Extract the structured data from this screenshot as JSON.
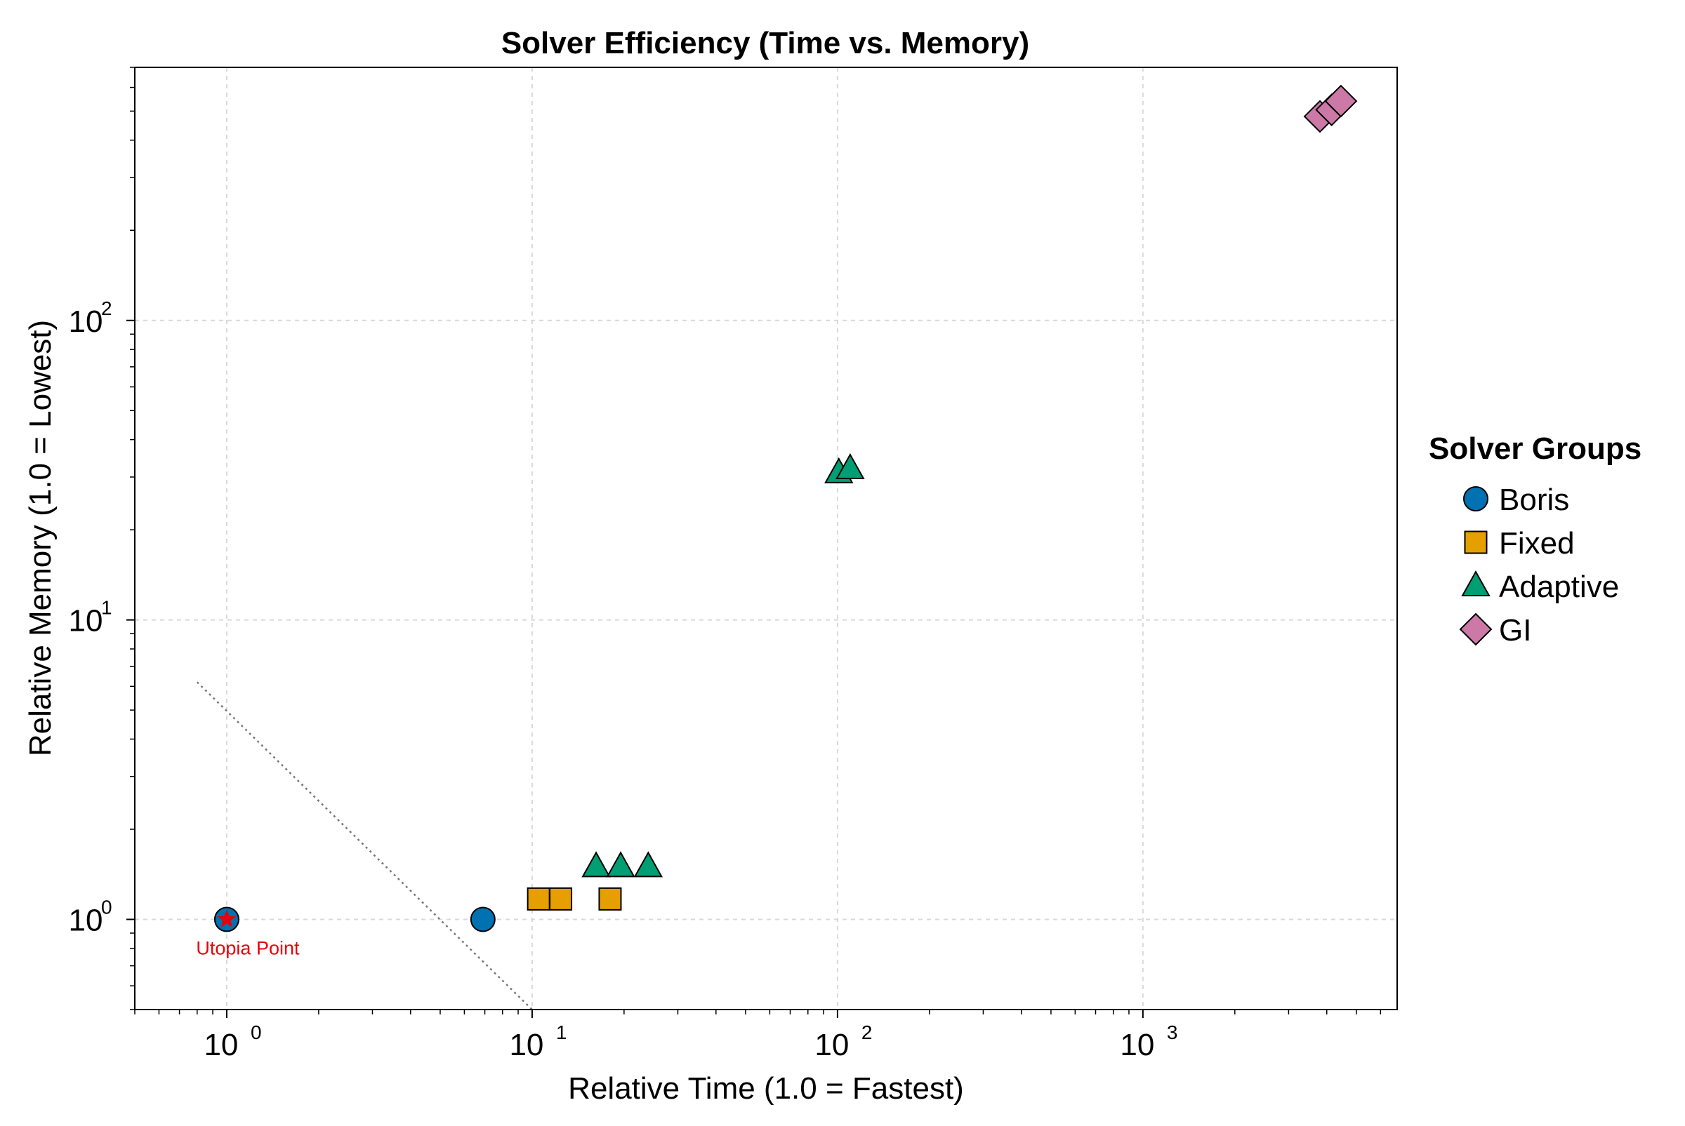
{
  "chart_data": {
    "type": "scatter",
    "title": "Solver Efficiency (Time vs. Memory)",
    "xlabel": "Relative Time (1.0 = Fastest)",
    "ylabel": "Relative Memory (1.0 = Lowest)",
    "xscale": "log",
    "yscale": "log",
    "xlim": [
      0.5,
      6800
    ],
    "ylim": [
      0.5,
      700
    ],
    "grid": true,
    "x_ticks": [
      {
        "base": "10",
        "exp": "0",
        "value": 1
      },
      {
        "base": "10",
        "exp": "1",
        "value": 10
      },
      {
        "base": "10",
        "exp": "2",
        "value": 100
      },
      {
        "base": "10",
        "exp": "3",
        "value": 1000
      }
    ],
    "y_ticks": [
      {
        "base": "10",
        "exp": "0",
        "value": 1
      },
      {
        "base": "10",
        "exp": "1",
        "value": 10
      },
      {
        "base": "10",
        "exp": "2",
        "value": 100
      }
    ],
    "legend": {
      "title": "Solver Groups",
      "position": "right"
    },
    "series": [
      {
        "name": "Boris",
        "marker": "circle",
        "color": "#0072b2",
        "points": [
          {
            "x": 1.0,
            "y": 1.0
          },
          {
            "x": 6.9,
            "y": 1.0
          }
        ]
      },
      {
        "name": "Fixed",
        "marker": "square",
        "color": "#e69f00",
        "points": [
          {
            "x": 10.5,
            "y": 1.17
          },
          {
            "x": 12.4,
            "y": 1.17
          },
          {
            "x": 18.0,
            "y": 1.17
          }
        ]
      },
      {
        "name": "Adaptive",
        "marker": "triangle",
        "color": "#009e73",
        "points": [
          {
            "x": 16.2,
            "y": 1.5
          },
          {
            "x": 19.5,
            "y": 1.5
          },
          {
            "x": 24.0,
            "y": 1.5
          },
          {
            "x": 101,
            "y": 31
          },
          {
            "x": 110,
            "y": 32
          }
        ]
      },
      {
        "name": "GI",
        "marker": "diamond",
        "color": "#cc79a7",
        "points": [
          {
            "x": 3800,
            "y": 480
          },
          {
            "x": 4150,
            "y": 505
          },
          {
            "x": 4450,
            "y": 540
          }
        ]
      }
    ],
    "annotations": [
      {
        "text": "Utopia Point",
        "x": 1.0,
        "y": 1.0,
        "marker": "star",
        "color": "#e8000b"
      }
    ],
    "reference_line": {
      "style": "dotted",
      "color": "#777777",
      "from": {
        "x": 0.8,
        "y": 6.2
      },
      "to": {
        "x": 10,
        "y": 0.5
      }
    }
  }
}
